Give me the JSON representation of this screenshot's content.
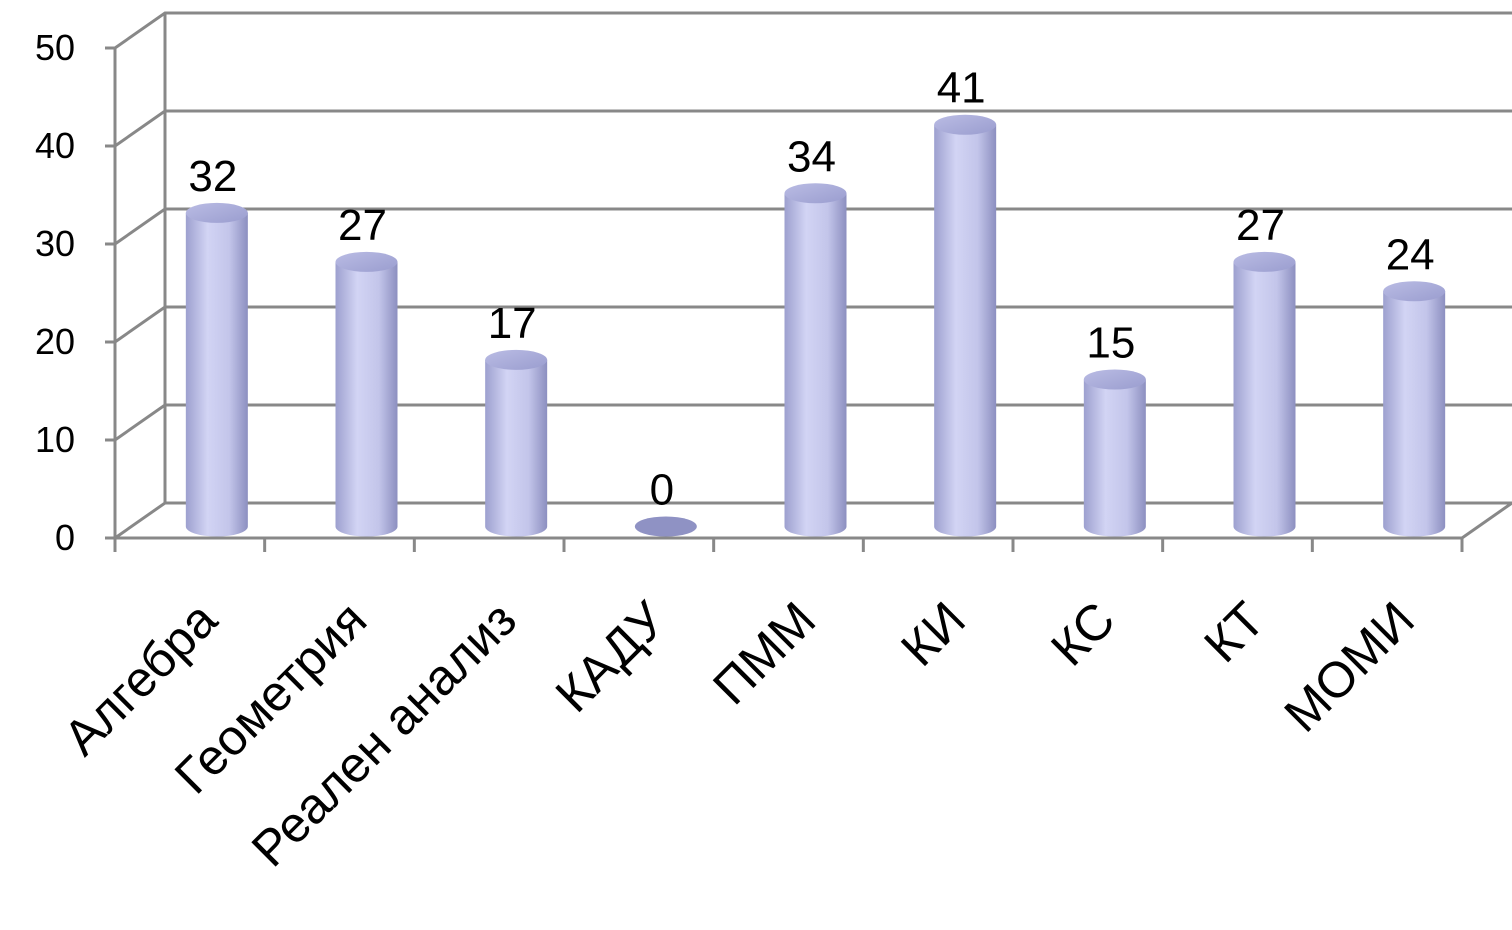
{
  "chart_data": {
    "type": "bar",
    "style": "3d-cylinder",
    "categories": [
      "Алгебра",
      "Геометрия",
      "Реален анализ",
      "КАДУ",
      "ПММ",
      "КИ",
      "КС",
      "КТ",
      "МОМИ"
    ],
    "values": [
      32,
      27,
      17,
      0,
      34,
      41,
      15,
      27,
      24
    ],
    "ylim": [
      0,
      50
    ],
    "yticks": [
      0,
      10,
      20,
      30,
      40,
      50
    ],
    "grid": true,
    "legend": "none",
    "colors": {
      "bar": "#c6c8ec",
      "bar_dark": "#8f92c4",
      "bar_top": "#b2b4e0",
      "grid": "#888888",
      "axis": "#888888"
    }
  }
}
